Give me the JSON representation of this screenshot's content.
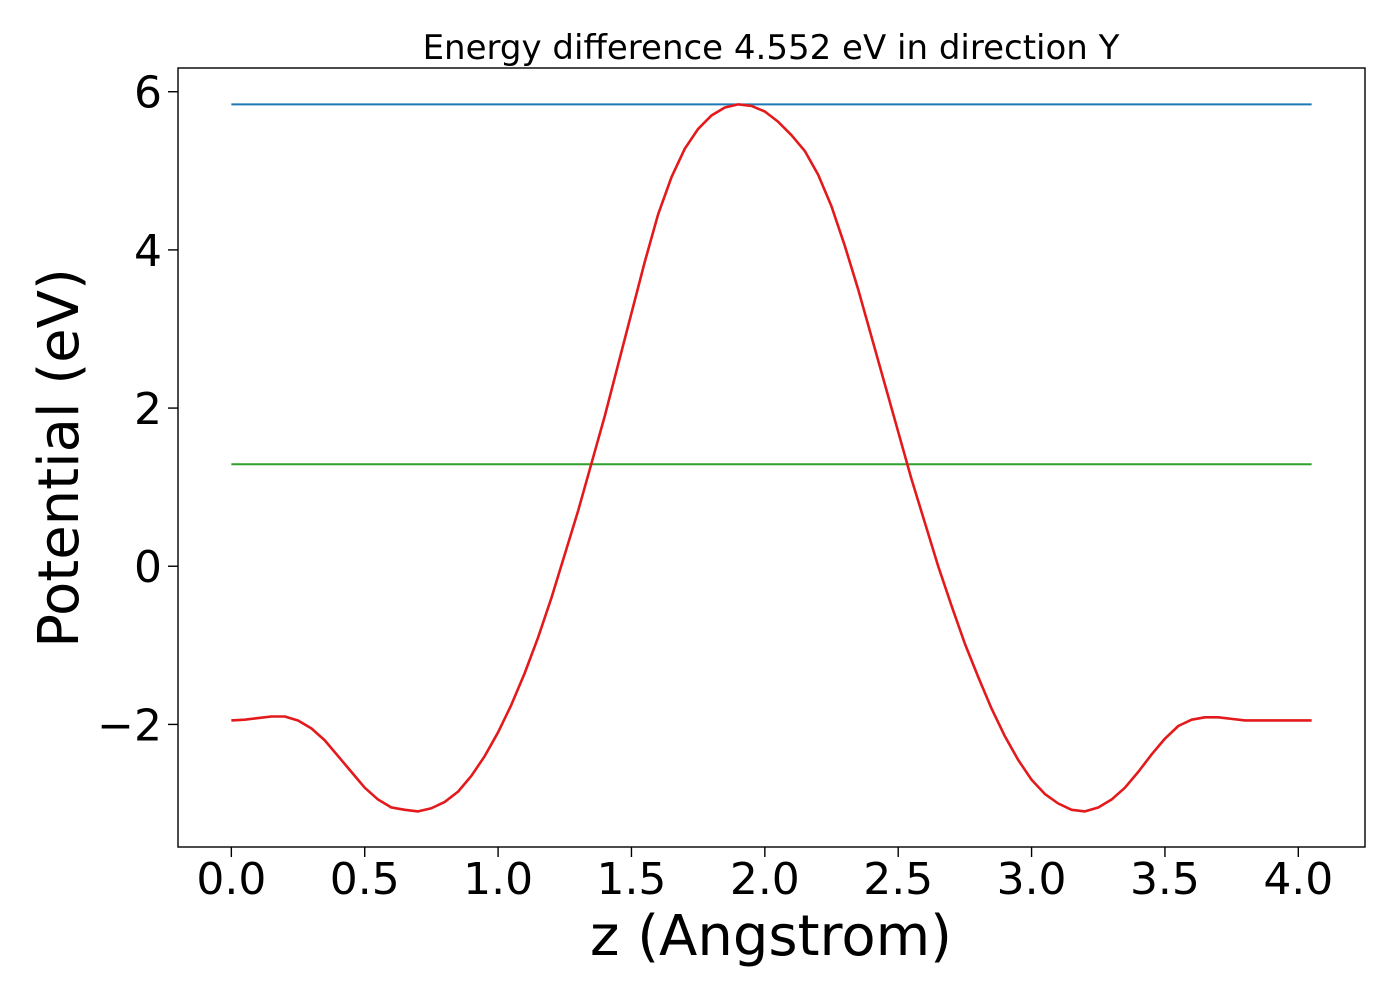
{
  "chart_data": {
    "type": "line",
    "title": "Energy difference 4.552 eV in direction Y",
    "xlabel": "z (Angstrom)",
    "ylabel": "Potential (eV)",
    "xlim": [
      -0.2,
      4.25
    ],
    "ylim": [
      -3.55,
      6.3
    ],
    "xticks": [
      0.0,
      0.5,
      1.0,
      1.5,
      2.0,
      2.5,
      3.0,
      3.5,
      4.0
    ],
    "xtick_labels": [
      "0.0",
      "0.5",
      "1.0",
      "1.5",
      "2.0",
      "2.5",
      "3.0",
      "3.5",
      "4.0"
    ],
    "yticks": [
      -2,
      0,
      2,
      4,
      6
    ],
    "ytick_labels": [
      "−2",
      "0",
      "2",
      "4",
      "6"
    ],
    "grid": false,
    "series": [
      {
        "color": "#1f77b4",
        "x": [
          0.0,
          4.05
        ],
        "y": [
          5.84,
          5.84
        ]
      },
      {
        "color": "#2ca02c",
        "x": [
          0.0,
          4.05
        ],
        "y": [
          1.29,
          1.29
        ]
      },
      {
        "color": "#e31a1c",
        "x": [
          0.0,
          0.05,
          0.1,
          0.15,
          0.2,
          0.25,
          0.3,
          0.35,
          0.4,
          0.45,
          0.5,
          0.55,
          0.6,
          0.65,
          0.7,
          0.75,
          0.8,
          0.85,
          0.9,
          0.95,
          1.0,
          1.05,
          1.1,
          1.15,
          1.2,
          1.25,
          1.3,
          1.35,
          1.4,
          1.45,
          1.5,
          1.55,
          1.6,
          1.65,
          1.7,
          1.75,
          1.8,
          1.85,
          1.9,
          1.95,
          2.0,
          2.05,
          2.1,
          2.15,
          2.2,
          2.25,
          2.3,
          2.35,
          2.4,
          2.45,
          2.5,
          2.55,
          2.6,
          2.65,
          2.7,
          2.75,
          2.8,
          2.85,
          2.9,
          2.95,
          3.0,
          3.05,
          3.1,
          3.15,
          3.2,
          3.25,
          3.3,
          3.35,
          3.4,
          3.45,
          3.5,
          3.55,
          3.6,
          3.65,
          3.7,
          3.75,
          3.8,
          3.85,
          3.9,
          3.95,
          4.0,
          4.05
        ],
        "y": [
          -1.95,
          -1.94,
          -1.92,
          -1.9,
          -1.9,
          -1.95,
          -2.05,
          -2.2,
          -2.4,
          -2.6,
          -2.8,
          -2.95,
          -3.05,
          -3.08,
          -3.1,
          -3.06,
          -2.98,
          -2.85,
          -2.65,
          -2.4,
          -2.1,
          -1.75,
          -1.35,
          -0.9,
          -0.4,
          0.15,
          0.7,
          1.3,
          1.9,
          2.55,
          3.2,
          3.85,
          4.45,
          4.92,
          5.28,
          5.53,
          5.7,
          5.8,
          5.84,
          5.82,
          5.75,
          5.62,
          5.45,
          5.25,
          4.95,
          4.55,
          4.05,
          3.5,
          2.9,
          2.3,
          1.7,
          1.1,
          0.55,
          0.0,
          -0.5,
          -0.98,
          -1.4,
          -1.8,
          -2.15,
          -2.45,
          -2.7,
          -2.88,
          -3.0,
          -3.08,
          -3.1,
          -3.05,
          -2.95,
          -2.8,
          -2.6,
          -2.38,
          -2.18,
          -2.02,
          -1.94,
          -1.91,
          -1.91,
          -1.93,
          -1.95,
          -1.95,
          -1.95,
          -1.95,
          -1.95,
          -1.95
        ]
      }
    ]
  }
}
